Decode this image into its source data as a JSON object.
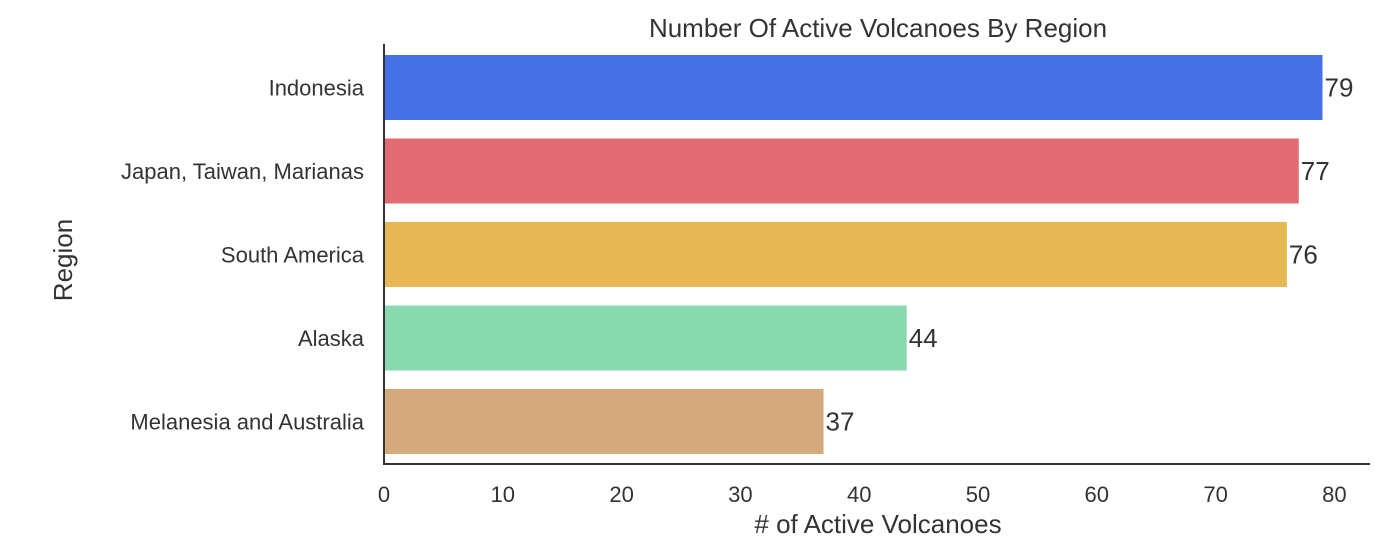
{
  "chart_data": {
    "type": "bar",
    "orientation": "horizontal",
    "title": "Number Of Active Volcanoes By Region",
    "xlabel": "# of Active Volcanoes",
    "ylabel": "Region",
    "categories": [
      "Indonesia",
      "Japan, Taiwan, Marianas",
      "South America",
      "Alaska",
      "Melanesia and Australia"
    ],
    "values": [
      79,
      77,
      76,
      44,
      37
    ],
    "colors": [
      "#4570e6",
      "#e26a72",
      "#e5b853",
      "#88d8b0",
      "#d4a97b"
    ],
    "xlim": [
      0,
      82
    ],
    "xticks": [
      0,
      10,
      20,
      30,
      40,
      50,
      60,
      70,
      80
    ],
    "data_labels": [
      "79",
      "77",
      "76",
      "44",
      "37"
    ],
    "grid": false,
    "legend": false
  }
}
